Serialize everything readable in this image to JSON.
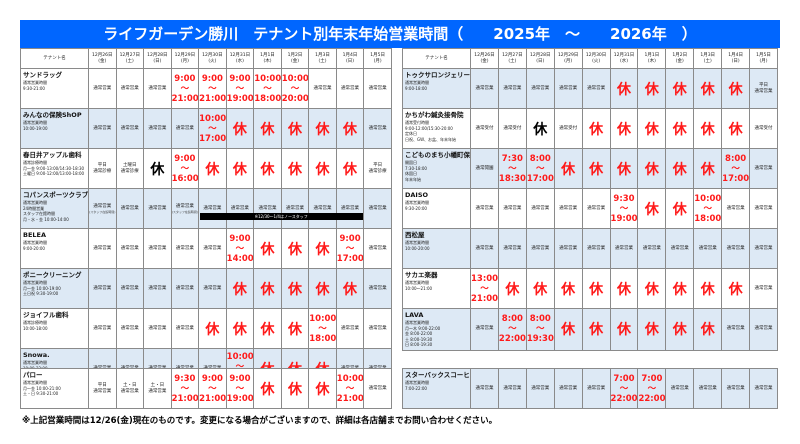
{
  "title": "ライフガーデン勝川　テナント別年末年始営業時間（　　2025年　～　　2026年　）",
  "header_name": "テナント名",
  "dates": [
    [
      "12月26日",
      "(金)"
    ],
    [
      "12月27日",
      "(土)"
    ],
    [
      "12月28日",
      "(日)"
    ],
    [
      "12月29日",
      "(月)"
    ],
    [
      "12月30日",
      "(火)"
    ],
    [
      "12月31日",
      "(水)"
    ],
    [
      "1月1日",
      "(木)"
    ],
    [
      "1月2日",
      "(金)"
    ],
    [
      "1月3日",
      "(土)"
    ],
    [
      "1月4日",
      "(日)"
    ],
    [
      "1月5日",
      "(月)"
    ]
  ],
  "colors": {
    "title_bg": "#0066ff",
    "alt_row": "#dde9f5",
    "time_red": "#ff1a1a"
  },
  "left_table": [
    {
      "name": "サンドラッグ",
      "sub": [
        "通常営業時間",
        "",
        "9:30-21:00"
      ],
      "cells": [
        {
          "t": "通常営業"
        },
        {
          "t": "通常営業"
        },
        {
          "t": "通常営業"
        },
        {
          "open": "9:00",
          "close": "21:00"
        },
        {
          "open": "9:00",
          "close": "21:00"
        },
        {
          "open": "9:00",
          "close": "19:00"
        },
        {
          "open": "10:00",
          "close": "18:00"
        },
        {
          "open": "10:00",
          "close": "20:00"
        },
        {
          "t": "通常営業"
        },
        {
          "t": "通常営業"
        },
        {
          "t": "通常営業"
        }
      ]
    },
    {
      "name": "みんなの保険ShOP",
      "sub": [
        "通常営業時間",
        "",
        "10:00-19:00"
      ],
      "cells": [
        {
          "t": "通常営業"
        },
        {
          "t": "通常営業"
        },
        {
          "t": "通常営業"
        },
        {
          "t": "通常営業"
        },
        {
          "open": "10:00",
          "close": "17:00"
        },
        {
          "x": "休"
        },
        {
          "x": "休"
        },
        {
          "x": "休"
        },
        {
          "x": "休"
        },
        {
          "x": "休"
        },
        {
          "t": "通常営業"
        }
      ]
    },
    {
      "name": "春日井アップル歯科",
      "sub": [
        "通常診療時間",
        "",
        "月～金  9:00-13:00/14:30-18:30",
        "土曜日  9:00-12:00/13:00-18:00"
      ],
      "cells": [
        {
          "t": "平日\n通常診療"
        },
        {
          "t": "土曜日\n通常診療"
        },
        {
          "x": "休",
          "black": true
        },
        {
          "open": "9:00",
          "close": "16:00"
        },
        {
          "x": "休"
        },
        {
          "x": "休"
        },
        {
          "x": "休"
        },
        {
          "x": "休"
        },
        {
          "x": "休"
        },
        {
          "x": "休"
        },
        {
          "t": "平日\n通常診療"
        }
      ]
    },
    {
      "name": "コパンスポーツクラブ",
      "sub": [
        "通常営業時間",
        "24時間営業",
        "スタッフ在館時間",
        "月・水・金  10:00-14:00"
      ],
      "banner": {
        "text": "※12/30～1/4はノースタッフ",
        "start": 4,
        "end": 9
      },
      "cells": [
        {
          "t": "通常営業",
          "note": "(スタッフ在館時間)"
        },
        {
          "t": "通常営業"
        },
        {
          "t": "通常営業"
        },
        {
          "t": "通常営業",
          "note": "(スタッフ在館時間)"
        },
        {
          "t": "通常営業"
        },
        {
          "t": "通常営業"
        },
        {
          "t": "通常営業"
        },
        {
          "t": "通常営業"
        },
        {
          "t": "通常営業"
        },
        {
          "t": "通常営業"
        },
        {
          "t": "通常営業"
        }
      ]
    },
    {
      "name": "BELEA",
      "sub": [
        "通常営業時間",
        "",
        "9:00-20:00"
      ],
      "cells": [
        {
          "t": "通常営業"
        },
        {
          "t": "通常営業"
        },
        {
          "t": "通常営業"
        },
        {
          "t": "通常営業"
        },
        {
          "t": "通常営業"
        },
        {
          "open": "9:00",
          "close": "14:00"
        },
        {
          "x": "休"
        },
        {
          "x": "休"
        },
        {
          "x": "休"
        },
        {
          "open": "9:00",
          "close": "17:00"
        },
        {
          "t": "通常営業"
        }
      ]
    },
    {
      "name": "ポニークリーニング",
      "sub": [
        "通常営業時間",
        "",
        "月～金  10:00-19:00",
        "土日祝  9:30-19:00"
      ],
      "cells": [
        {
          "t": "通常営業"
        },
        {
          "t": "通常営業"
        },
        {
          "t": "通常営業"
        },
        {
          "t": "通常営業"
        },
        {
          "t": "通常営業"
        },
        {
          "x": "休"
        },
        {
          "x": "休"
        },
        {
          "x": "休"
        },
        {
          "x": "休"
        },
        {
          "x": "休"
        },
        {
          "t": "通常営業"
        }
      ]
    },
    {
      "name": "ジョイフル歯科",
      "sub": [
        "通常診療時間",
        "",
        "10:00-18:00"
      ],
      "cells": [
        {
          "t": "通常営業"
        },
        {
          "t": "通常営業"
        },
        {
          "t": "通常営業"
        },
        {
          "t": "通常営業"
        },
        {
          "x": "休"
        },
        {
          "x": "休"
        },
        {
          "x": "休"
        },
        {
          "x": "休"
        },
        {
          "open": "10:00",
          "close": "18:00"
        },
        {
          "t": "通常営業"
        },
        {
          "t": "通常営業"
        }
      ]
    },
    {
      "name": "Snowa.",
      "sub": [
        "通常営業時間",
        "",
        "10:00-22:00",
        "（受付終了21:00）"
      ],
      "cells": [
        {
          "t": "通常営業"
        },
        {
          "t": "通常営業"
        },
        {
          "t": "通常営業"
        },
        {
          "t": "通常営業"
        },
        {
          "t": "通常営業"
        },
        {
          "open": "10:00",
          "close": "18:00",
          "note": "(受付終了17:00)"
        },
        {
          "x": "休"
        },
        {
          "x": "休"
        },
        {
          "x": "休"
        },
        {
          "t": "通常営業"
        },
        {
          "t": "通常営業"
        }
      ]
    }
  ],
  "left_bottom": [
    {
      "name": "パロー",
      "sub": [
        "通常営業時間",
        "",
        "月～金  10:00-21:00",
        "土・日  9:30-21:00"
      ],
      "cells": [
        {
          "t": "平日\n通常営業"
        },
        {
          "t": "土・日\n通常営業"
        },
        {
          "t": "土・日\n通常営業"
        },
        {
          "open": "9:30",
          "close": "21:00"
        },
        {
          "open": "9:00",
          "close": "21:00"
        },
        {
          "open": "9:00",
          "close": "19:00"
        },
        {
          "x": "休"
        },
        {
          "x": "休"
        },
        {
          "x": "休"
        },
        {
          "open": "10:00",
          "close": "21:00"
        },
        {
          "t": "通常営業"
        }
      ]
    }
  ],
  "right_table": [
    {
      "name": "トゥクサロンジェリー",
      "sub": [
        "通常営業時間",
        "",
        "9:00-18:00"
      ],
      "alt": true,
      "cells": [
        {
          "t": "通常営業"
        },
        {
          "t": "通常営業"
        },
        {
          "t": "通常営業"
        },
        {
          "t": "通常営業"
        },
        {
          "t": "通常営業"
        },
        {
          "x": "休"
        },
        {
          "x": "休"
        },
        {
          "x": "休"
        },
        {
          "x": "休"
        },
        {
          "x": "休"
        },
        {
          "t": "平日\n通常営業"
        }
      ]
    },
    {
      "name": "かちがわ鍼灸接骨院",
      "sub": [
        "通常受付時間",
        "9:00-12:00/15:30-20:00",
        "定休日",
        "日祝、GW、お盆、年末年始"
      ],
      "cells": [
        {
          "t": "通常受付"
        },
        {
          "t": "通常受付"
        },
        {
          "x": "休",
          "black": true
        },
        {
          "t": "通常受付"
        },
        {
          "x": "休"
        },
        {
          "x": "休"
        },
        {
          "x": "休"
        },
        {
          "x": "休"
        },
        {
          "x": "休"
        },
        {
          "x": "休"
        },
        {
          "t": "通常受付"
        }
      ]
    },
    {
      "name": "こどものまち小幡町保育園",
      "sub": [
        "開園日",
        "7:30-18:00",
        "休園日",
        "年末年始"
      ],
      "alt": true,
      "cells": [
        {
          "t": "通常開園"
        },
        {
          "open": "7:30",
          "close": "18:30"
        },
        {
          "open": "8:00",
          "close": "17:00"
        },
        {
          "x": "休"
        },
        {
          "x": "休"
        },
        {
          "x": "休"
        },
        {
          "x": "休"
        },
        {
          "x": "休"
        },
        {
          "x": "休"
        },
        {
          "open": "8:00",
          "close": "17:00"
        },
        {
          "t": "通常営業"
        }
      ]
    },
    {
      "name": "DAISO",
      "sub": [
        "通常営業時間",
        "",
        "9:30-20:00"
      ],
      "cells": [
        {
          "t": "通常営業"
        },
        {
          "t": "通常営業"
        },
        {
          "t": "通常営業"
        },
        {
          "t": "通常営業"
        },
        {
          "t": "通常営業"
        },
        {
          "open": "9:30",
          "close": "19:00"
        },
        {
          "x": "休"
        },
        {
          "x": "休"
        },
        {
          "open": "10:00",
          "close": "18:00"
        },
        {
          "t": "通常営業"
        },
        {
          "t": "通常営業"
        }
      ]
    },
    {
      "name": "西松屋",
      "sub": [
        "通常営業時間",
        "",
        "10:00-20:00"
      ],
      "alt": true,
      "cells": [
        {
          "t": "通常営業"
        },
        {
          "t": "通常営業"
        },
        {
          "t": "通常営業"
        },
        {
          "t": "通常営業"
        },
        {
          "t": "通常営業"
        },
        {
          "t": "通常営業"
        },
        {
          "t": "通常営業"
        },
        {
          "t": "通常営業"
        },
        {
          "t": "通常営業"
        },
        {
          "t": "通常営業"
        },
        {
          "t": "通常営業"
        }
      ]
    },
    {
      "name": "サカエ楽器",
      "sub": [
        "通常営業時間",
        "",
        "10:00～21:00"
      ],
      "cells": [
        {
          "open": "13:00",
          "close": "21:00"
        },
        {
          "x": "休"
        },
        {
          "x": "休"
        },
        {
          "x": "休"
        },
        {
          "x": "休"
        },
        {
          "x": "休"
        },
        {
          "x": "休"
        },
        {
          "x": "休"
        },
        {
          "x": "休"
        },
        {
          "x": "休"
        },
        {
          "t": "通常営業"
        }
      ]
    },
    {
      "name": "LAVA",
      "sub": [
        "通常営業時間",
        "月～木  9:00-22:00",
        "金    8:00-22:00",
        "土    8:00-19:30",
        "日    8:00-19:30"
      ],
      "alt": true,
      "cells": [
        {
          "t": "通常営業"
        },
        {
          "open": "8:00",
          "close": "22:00"
        },
        {
          "open": "8:00",
          "close": "19:30"
        },
        {
          "x": "休"
        },
        {
          "x": "休"
        },
        {
          "x": "休"
        },
        {
          "x": "休"
        },
        {
          "x": "休"
        },
        {
          "x": "休"
        },
        {
          "t": "通常営業"
        },
        {
          "t": "通常営業"
        }
      ]
    }
  ],
  "right_bottom": [
    {
      "name": "スターバックスコーヒー",
      "sub": [
        "通常営業時間",
        "",
        "7:00-22:00"
      ],
      "alt": true,
      "cells": [
        {
          "t": "通常営業"
        },
        {
          "t": "通常営業"
        },
        {
          "t": "通常営業"
        },
        {
          "t": "通常営業"
        },
        {
          "t": "通常営業"
        },
        {
          "open": "7:00",
          "close": "22:00"
        },
        {
          "open": "7:00",
          "close": "22:00"
        },
        {
          "t": "通常営業"
        },
        {
          "t": "通常営業"
        },
        {
          "t": "通常営業"
        },
        {
          "t": "通常営業"
        }
      ]
    }
  ],
  "tilde": "～",
  "footnote": "※上記営業時間は12/26(金)現在のものです。変更になる場合がございますので、詳細は各店舗までお問い合わせください。"
}
